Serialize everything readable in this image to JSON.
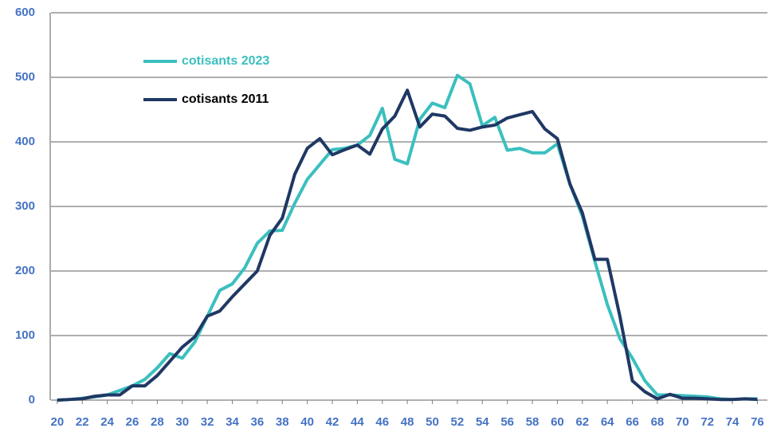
{
  "chart_data": {
    "type": "line",
    "x": [
      20,
      21,
      22,
      23,
      24,
      25,
      26,
      27,
      28,
      29,
      30,
      31,
      32,
      33,
      34,
      35,
      36,
      37,
      38,
      39,
      40,
      41,
      42,
      43,
      44,
      45,
      46,
      47,
      48,
      49,
      50,
      51,
      52,
      53,
      54,
      55,
      56,
      57,
      58,
      59,
      60,
      61,
      62,
      63,
      64,
      65,
      66,
      67,
      68,
      69,
      70,
      71,
      72,
      73,
      74,
      75,
      76
    ],
    "series": [
      {
        "name": "cotisants 2023",
        "color": "#3bbfbf",
        "values": [
          0,
          1,
          3,
          5,
          8,
          15,
          22,
          32,
          50,
          72,
          65,
          90,
          130,
          170,
          180,
          205,
          243,
          262,
          263,
          305,
          342,
          365,
          388,
          390,
          395,
          410,
          452,
          373,
          366,
          435,
          460,
          453,
          503,
          490,
          425,
          438,
          387,
          390,
          383,
          383,
          397,
          335,
          285,
          215,
          148,
          95,
          65,
          30,
          8,
          8,
          7,
          6,
          5,
          2,
          1,
          2,
          2
        ]
      },
      {
        "name": "cotisants 2011",
        "color": "#1f3864",
        "values": [
          0,
          1,
          2,
          6,
          8,
          8,
          22,
          22,
          38,
          60,
          82,
          98,
          130,
          138,
          160,
          180,
          200,
          255,
          282,
          350,
          390,
          405,
          380,
          388,
          395,
          381,
          420,
          440,
          480,
          423,
          443,
          440,
          421,
          418,
          423,
          426,
          437,
          442,
          447,
          420,
          405,
          335,
          290,
          218,
          218,
          130,
          30,
          13,
          2,
          9,
          3,
          3,
          2,
          1,
          1,
          2,
          1
        ]
      }
    ],
    "xlim": [
      19.5,
      76.8
    ],
    "xticks": [
      20,
      22,
      24,
      26,
      28,
      30,
      32,
      34,
      36,
      38,
      40,
      42,
      44,
      46,
      48,
      50,
      52,
      54,
      56,
      58,
      60,
      62,
      64,
      66,
      68,
      70,
      72,
      74,
      76
    ],
    "ylim": [
      0,
      600
    ],
    "yticks": [
      0,
      100,
      200,
      300,
      400,
      500,
      600
    ],
    "grid": true
  }
}
